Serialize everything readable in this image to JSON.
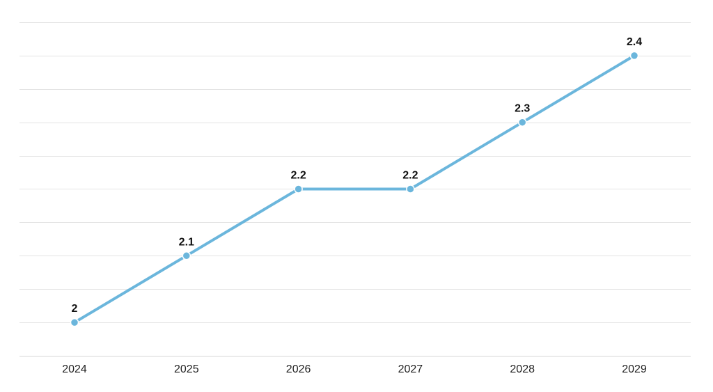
{
  "chart_data": {
    "type": "line",
    "title": "",
    "xlabel": "",
    "ylabel": "",
    "categories": [
      "2024",
      "2025",
      "2026",
      "2027",
      "2028",
      "2029"
    ],
    "series": [
      {
        "name": "",
        "values": [
          2,
          2.1,
          2.2,
          2.2,
          2.3,
          2.4
        ],
        "labels": [
          "2",
          "2.1",
          "2.2",
          "2.2",
          "2.3",
          "2.4"
        ]
      }
    ],
    "ylim": [
      1.95,
      2.45
    ],
    "grid_step": 0.05,
    "grid": true,
    "legend": "none",
    "colors": {
      "line": "#6bb6dc",
      "point": "#6bb6dc"
    }
  }
}
